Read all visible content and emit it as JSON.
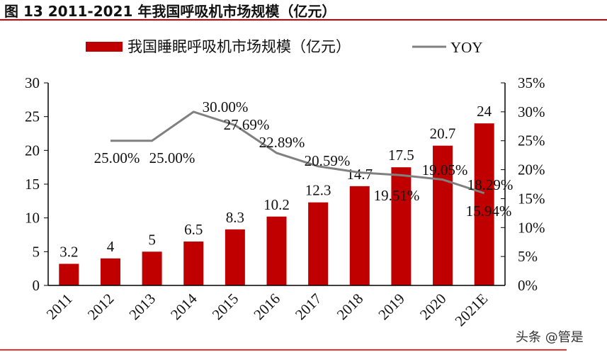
{
  "title": "图 13 2011-2021 年我国呼吸机市场规模（亿元）",
  "watermark": "头条 @管是",
  "colors": {
    "bar": "#c00000",
    "line": "#808080",
    "rule": "#c00000"
  },
  "chart_data": {
    "type": "bar+line",
    "categories": [
      "2011",
      "2012",
      "2013",
      "2014",
      "2015",
      "2016",
      "2017",
      "2018",
      "2019",
      "2020",
      "2021E"
    ],
    "series": [
      {
        "name": "我国睡眠呼吸机市场规模（亿元）",
        "type": "bar",
        "axis": "left",
        "values": [
          3.2,
          4,
          5,
          6.5,
          8.3,
          10.2,
          12.3,
          14.7,
          17.5,
          20.7,
          24
        ],
        "labels": [
          "3.2",
          "4",
          "5",
          "6.5",
          "8.3",
          "10.2",
          "12.3",
          "14.7",
          "17.5",
          "20.7",
          "24"
        ]
      },
      {
        "name": "YOY",
        "type": "line",
        "axis": "right",
        "values": [
          null,
          25.0,
          25.0,
          30.0,
          27.69,
          22.89,
          20.59,
          19.51,
          19.05,
          18.29,
          15.94
        ],
        "labels": [
          null,
          "25.00%",
          "25.00%",
          "30.00%",
          "27.69%",
          "22.89%",
          "20.59%",
          "19.51%",
          "19.05%",
          "18.29%",
          "15.94%"
        ]
      }
    ],
    "ylim_left": [
      0,
      30
    ],
    "yticks_left": [
      "0",
      "5",
      "10",
      "15",
      "20",
      "25",
      "30"
    ],
    "ylim_right": [
      0,
      35
    ],
    "yticks_right": [
      "0%",
      "5%",
      "10%",
      "15%",
      "20%",
      "25%",
      "30%",
      "35%"
    ],
    "legend": "top",
    "grid": false
  }
}
